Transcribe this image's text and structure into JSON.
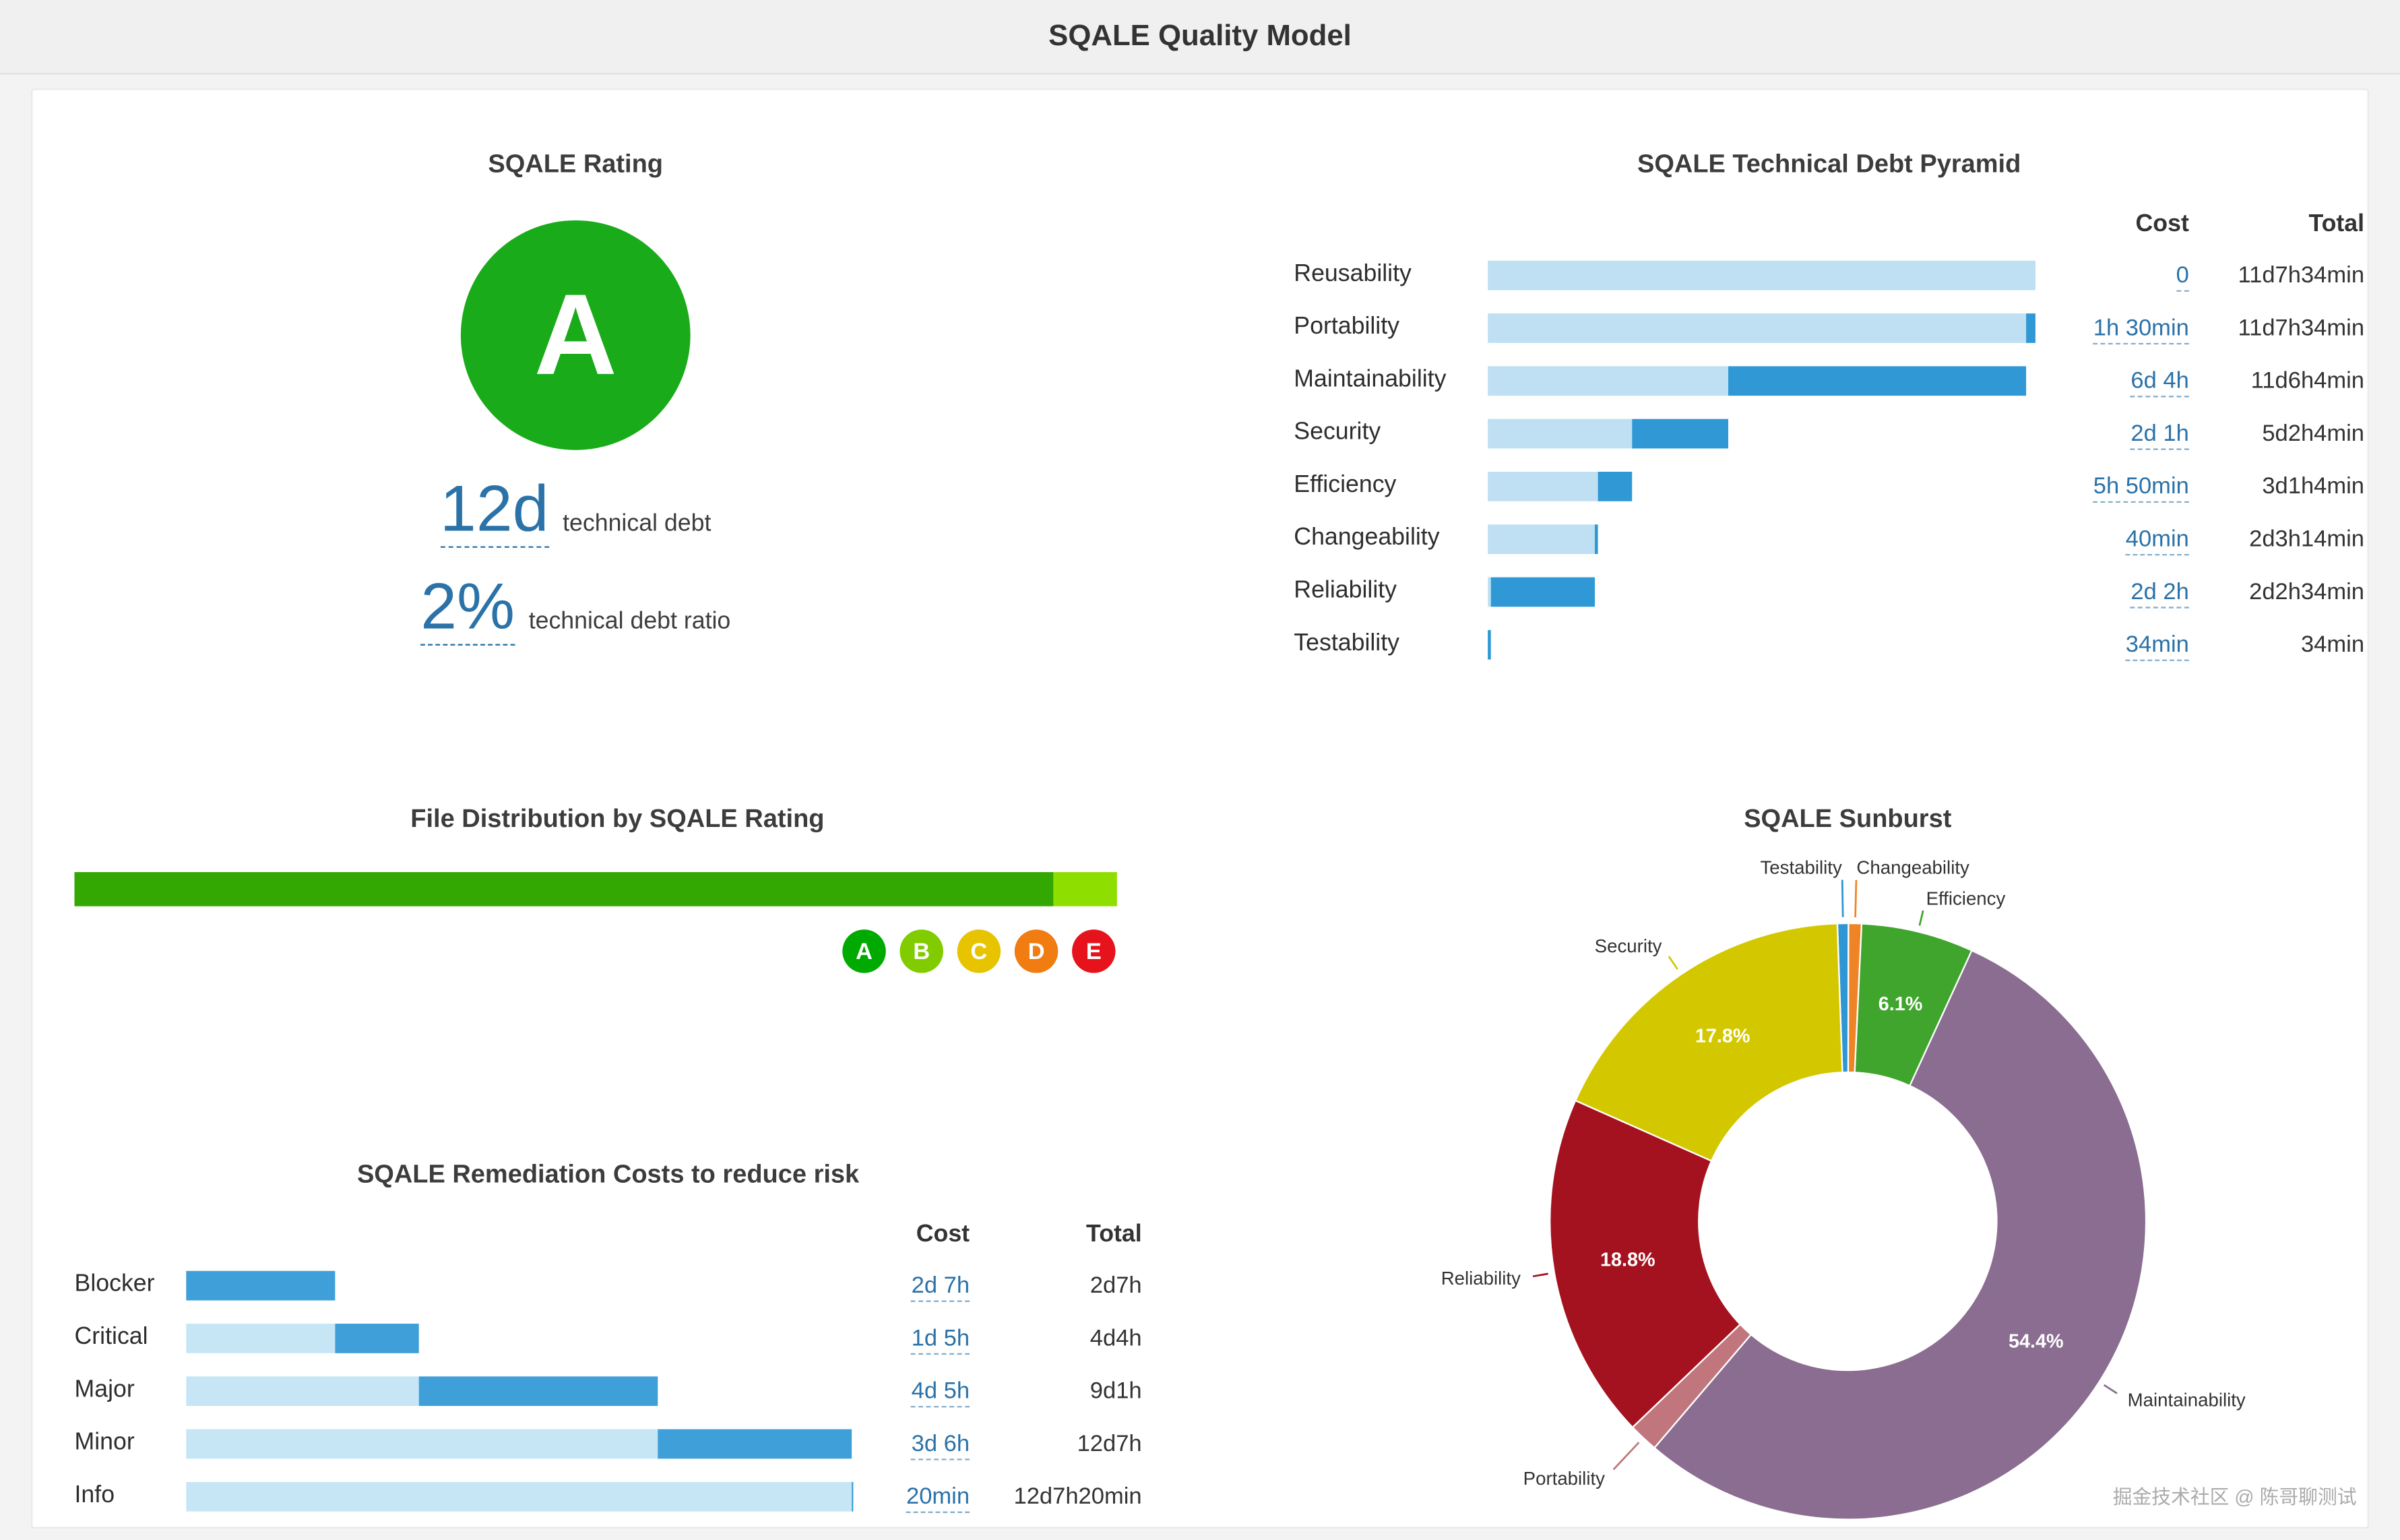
{
  "header": {
    "title": "SQALE Quality Model"
  },
  "rating": {
    "title": "SQALE Rating",
    "grade": "A",
    "grade_color": "#1aab1a",
    "debt_value": "12d",
    "debt_label": "technical debt",
    "ratio_value": "2%",
    "ratio_label": "technical debt ratio"
  },
  "watermark": "掘金技术社区 @ 陈哥聊测试",
  "chart_data": [
    {
      "id": "pyramid",
      "type": "bar",
      "title": "SQALE Technical Debt Pyramid",
      "orientation": "horizontal",
      "columns": {
        "cost": "Cost",
        "total": "Total"
      },
      "colors": {
        "remaining": "#bfe0f2",
        "cost": "#2f98d5"
      },
      "unit": "work minutes (8h day)",
      "max_min": 5734,
      "rows": [
        {
          "label": "Reusability",
          "cost": "0",
          "total": "11d7h34min",
          "cost_min": 0,
          "total_min": 5734
        },
        {
          "label": "Portability",
          "cost": "1h 30min",
          "total": "11d7h34min",
          "cost_min": 90,
          "total_min": 5734
        },
        {
          "label": "Maintainability",
          "cost": "6d 4h",
          "total": "11d6h4min",
          "cost_min": 3120,
          "total_min": 5644
        },
        {
          "label": "Security",
          "cost": "2d 1h",
          "total": "5d2h4min",
          "cost_min": 1020,
          "total_min": 2524
        },
        {
          "label": "Efficiency",
          "cost": "5h 50min",
          "total": "3d1h4min",
          "cost_min": 350,
          "total_min": 1504
        },
        {
          "label": "Changeability",
          "cost": "40min",
          "total": "2d3h14min",
          "cost_min": 40,
          "total_min": 1154
        },
        {
          "label": "Reliability",
          "cost": "2d 2h",
          "total": "2d2h34min",
          "cost_min": 1080,
          "total_min": 1114
        },
        {
          "label": "Testability",
          "cost": "34min",
          "total": "34min",
          "cost_min": 34,
          "total_min": 34
        }
      ]
    },
    {
      "id": "file-distribution",
      "type": "bar",
      "title": "File Distribution by SQALE Rating",
      "segments": [
        {
          "rating": "A",
          "pct": 93.9,
          "color": "#33a702"
        },
        {
          "rating": "B",
          "pct": 6.1,
          "color": "#8edf00"
        }
      ],
      "legend": [
        {
          "label": "A",
          "color": "#00aa00"
        },
        {
          "label": "B",
          "color": "#80cc00"
        },
        {
          "label": "C",
          "color": "#e8c300"
        },
        {
          "label": "D",
          "color": "#f07c12"
        },
        {
          "label": "E",
          "color": "#e6131c"
        }
      ]
    },
    {
      "id": "remediation",
      "type": "bar",
      "title": "SQALE Remediation Costs to reduce risk",
      "orientation": "horizontal",
      "columns": {
        "cost": "Cost",
        "total": "Total"
      },
      "colors": {
        "previous": "#c6e6f6",
        "cost": "#3f9fd8"
      },
      "max_min": 6200,
      "rows": [
        {
          "label": "Blocker",
          "cost": "2d 7h",
          "total": "2d7h",
          "cost_min": 1380,
          "total_min": 1380
        },
        {
          "label": "Critical",
          "cost": "1d 5h",
          "total": "4d4h",
          "cost_min": 780,
          "total_min": 2160
        },
        {
          "label": "Major",
          "cost": "4d 5h",
          "total": "9d1h",
          "cost_min": 2220,
          "total_min": 4380
        },
        {
          "label": "Minor",
          "cost": "3d 6h",
          "total": "12d7h",
          "cost_min": 1800,
          "total_min": 6180
        },
        {
          "label": "Info",
          "cost": "20min",
          "total": "12d7h20min",
          "cost_min": 20,
          "total_min": 6200
        }
      ]
    },
    {
      "id": "sunburst",
      "type": "pie",
      "title": "SQALE Sunburst",
      "donut": true,
      "start_angle_deg": -92,
      "inner_radius": 96,
      "outer_radius": 192,
      "slices": [
        {
          "label": "Testability",
          "pct": 0.6,
          "color": "#2e96d2"
        },
        {
          "label": "Changeability",
          "pct": 0.7,
          "color": "#ef8426"
        },
        {
          "label": "Efficiency",
          "pct": 6.1,
          "color": "#3fa52c"
        },
        {
          "label": "Maintainability",
          "pct": 54.4,
          "color": "#8a6d90"
        },
        {
          "label": "Portability",
          "pct": 1.6,
          "color": "#c0767c"
        },
        {
          "label": "Reliability",
          "pct": 18.8,
          "color": "#a5121f"
        },
        {
          "label": "Security",
          "pct": 17.8,
          "color": "#d3c800"
        }
      ]
    }
  ]
}
